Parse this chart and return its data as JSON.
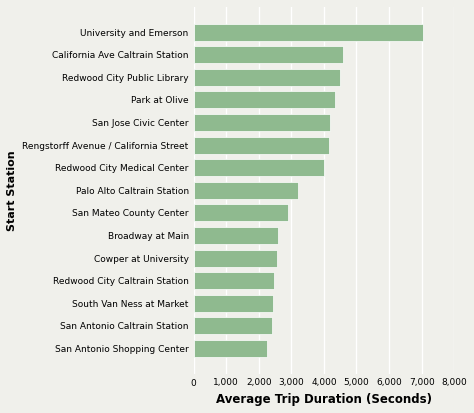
{
  "categories": [
    "University and Emerson",
    "California Ave Caltrain Station",
    "Redwood City Public Library",
    "Park at Olive",
    "San Jose Civic Center",
    "Rengstorff Avenue / California Street",
    "Redwood City Medical Center",
    "Palo Alto Caltrain Station",
    "San Mateo County Center",
    "Broadway at Main",
    "Cowper at University",
    "Redwood City Caltrain Station",
    "South Van Ness at Market",
    "San Antonio Caltrain Station",
    "San Antonio Shopping Center"
  ],
  "values": [
    7050,
    4600,
    4500,
    4350,
    4200,
    4150,
    4000,
    3200,
    2900,
    2580,
    2550,
    2480,
    2450,
    2400,
    2250
  ],
  "bar_color": "#8fba8f",
  "xlabel": "Average Trip Duration (Seconds)",
  "ylabel": "Start Station",
  "xlim": [
    0,
    8000
  ],
  "xticks": [
    0,
    1000,
    2000,
    3000,
    4000,
    5000,
    6000,
    7000,
    8000
  ],
  "xtick_labels": [
    "0",
    "1,000",
    "2,000",
    "3,000",
    "4,000",
    "5,000",
    "6,000",
    "7,000",
    "8,000"
  ],
  "background_color": "#f0f0eb",
  "grid_color": "#ffffff",
  "bar_height": 0.75,
  "label_fontsize": 6.5,
  "axis_label_fontsize": 8.5,
  "ylabel_fontsize": 8.0
}
